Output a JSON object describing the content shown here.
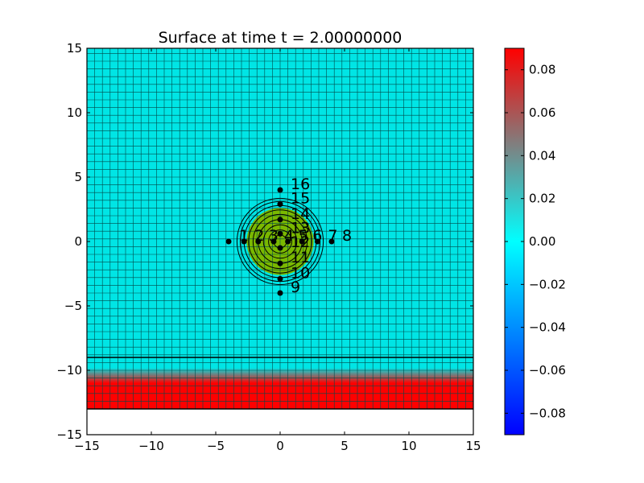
{
  "chart_data": {
    "type": "heatmap",
    "title": "Surface at time t =     2.00000000",
    "xlim": [
      -15,
      15
    ],
    "ylim": [
      -15,
      15
    ],
    "x_ticks": [
      -15,
      -10,
      -5,
      0,
      5,
      10,
      15
    ],
    "y_ticks": [
      -15,
      -10,
      -5,
      0,
      5,
      10,
      15
    ],
    "x_tick_labels": [
      "−15",
      "−10",
      "−5",
      "0",
      "5",
      "10",
      "15"
    ],
    "y_tick_labels": [
      "−15",
      "−10",
      "−5",
      "0",
      "5",
      "10",
      "15"
    ],
    "grid_spacing": 0.6,
    "field_colors": {
      "background": "#00e5e5",
      "grid_line": "#004a4a",
      "bump": "#7ab800",
      "band_top": "#00e5e5",
      "band_bottom": "#ff0000"
    },
    "band": {
      "y_top": -9,
      "y_bottom": -13,
      "solid_from": -11
    },
    "bump": {
      "center": [
        0,
        0
      ],
      "radius": 2.6
    },
    "contour_radii": [
      0.5,
      0.9,
      1.3,
      1.7,
      2.1,
      2.45,
      2.8,
      3.1,
      3.35
    ],
    "gauges": [
      {
        "label": "1",
        "x": -4.0,
        "y": 0
      },
      {
        "label": "2",
        "x": -2.8,
        "y": 0
      },
      {
        "label": "3",
        "x": -1.7,
        "y": 0
      },
      {
        "label": "4",
        "x": -0.5,
        "y": 0
      },
      {
        "label": "5",
        "x": 0.6,
        "y": 0
      },
      {
        "label": "6",
        "x": 1.7,
        "y": 0
      },
      {
        "label": "7",
        "x": 2.9,
        "y": 0
      },
      {
        "label": "8",
        "x": 4.0,
        "y": 0
      },
      {
        "label": "9",
        "x": 0,
        "y": -4.0
      },
      {
        "label": "10",
        "x": 0,
        "y": -2.9
      },
      {
        "label": "11",
        "x": 0,
        "y": -1.7
      },
      {
        "label": "12",
        "x": 0,
        "y": -0.5
      },
      {
        "label": "13",
        "x": 0,
        "y": 0.6
      },
      {
        "label": "14",
        "x": 0,
        "y": 1.7
      },
      {
        "label": "15",
        "x": 0,
        "y": 2.9
      },
      {
        "label": "16",
        "x": 0,
        "y": 4.0
      }
    ],
    "colorbar": {
      "range": [
        -0.09,
        0.09
      ],
      "ticks": [
        -0.08,
        -0.06,
        -0.04,
        -0.02,
        0.0,
        0.02,
        0.04,
        0.06,
        0.08
      ],
      "tick_labels": [
        "−0.08",
        "−0.06",
        "−0.04",
        "−0.02",
        "0.00",
        "0.02",
        "0.04",
        "0.06",
        "0.08"
      ],
      "colors": [
        "#0000ff",
        "#00ffff",
        "#ff0000"
      ]
    },
    "grid": true
  }
}
